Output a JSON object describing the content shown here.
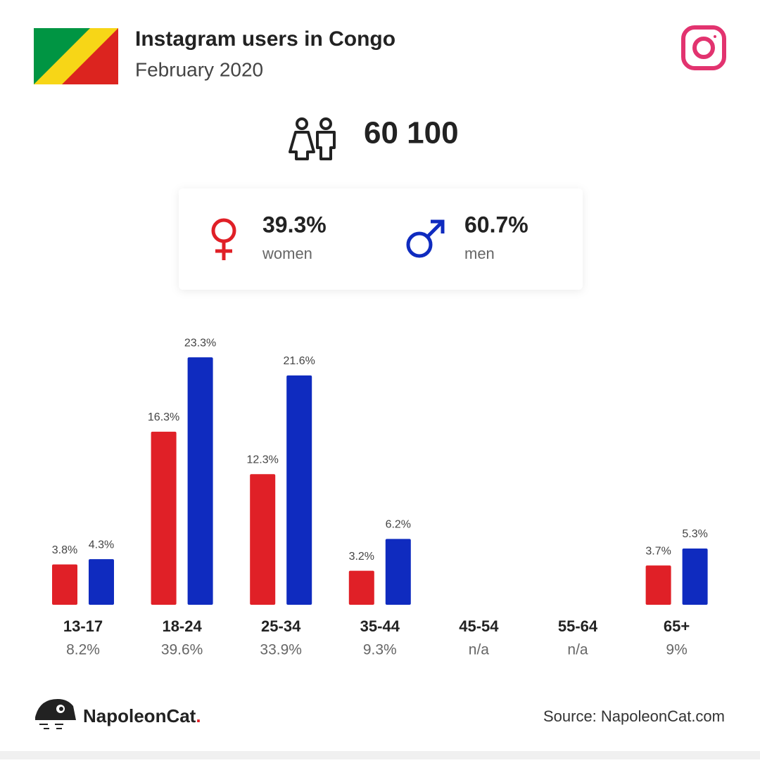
{
  "chart_data": {
    "type": "bar",
    "title": "Instagram users in Congo",
    "subtitle": "February 2020",
    "total": "60 100",
    "categories": [
      "13-17",
      "18-24",
      "25-34",
      "35-44",
      "45-54",
      "55-64",
      "65+"
    ],
    "category_totals": [
      "8.2%",
      "39.6%",
      "33.9%",
      "9.3%",
      "n/a",
      "n/a",
      "9%"
    ],
    "series": [
      {
        "name": "women",
        "share": "39.3%",
        "color": "#e02027",
        "values": [
          3.8,
          16.3,
          12.3,
          3.2,
          null,
          null,
          3.7
        ],
        "value_labels": [
          "3.8%",
          "16.3%",
          "12.3%",
          "3.2%",
          null,
          null,
          "3.7%"
        ]
      },
      {
        "name": "men",
        "share": "60.7%",
        "color": "#0f2bbf",
        "values": [
          4.3,
          23.3,
          21.6,
          6.2,
          null,
          null,
          5.3
        ],
        "value_labels": [
          "4.3%",
          "23.3%",
          "21.6%",
          "6.2%",
          null,
          null,
          "5.3%"
        ]
      }
    ],
    "brand": "NapoleonCat",
    "brand_dot": ".",
    "source": "Source: NapoleonCat.com"
  }
}
